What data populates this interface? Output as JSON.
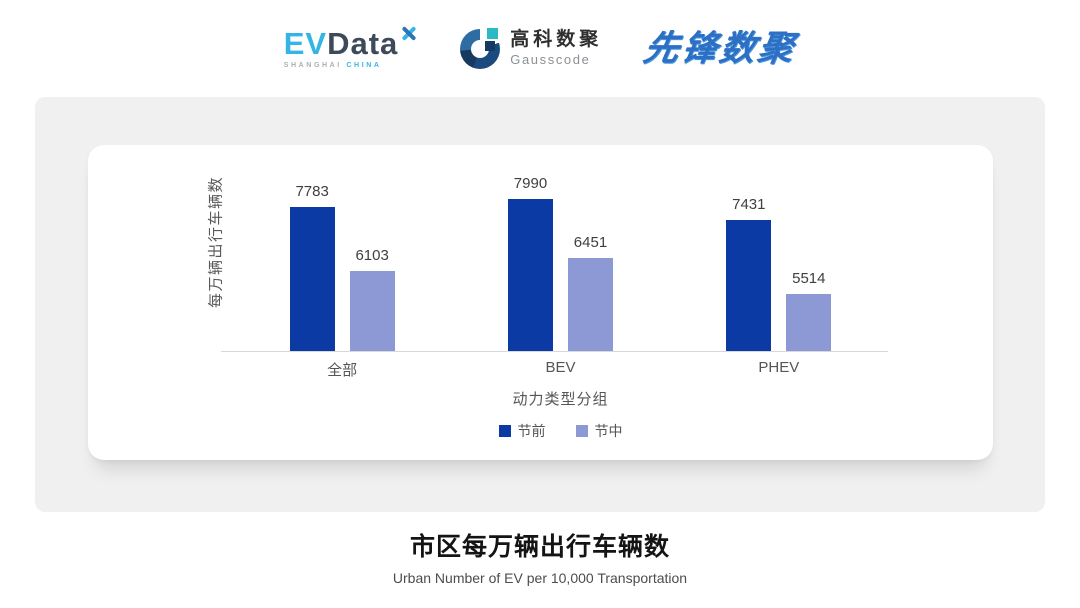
{
  "header": {
    "evdata": {
      "ev": "EV",
      "data": "Data",
      "sub_left": "SHANGHAI",
      "sub_right": "CHINA",
      "brand_blue": "#35B5E5",
      "brand_dark": "#3E4A59"
    },
    "gausscode": {
      "cn": "高科数聚",
      "en": "Gausscode",
      "navy": "#17395F",
      "teal": "#2BB9C6"
    },
    "xianfeng": {
      "text": "先锋数聚",
      "blue": "#2C6FC4"
    }
  },
  "chart_data": {
    "type": "bar",
    "title": "市区每万辆出行车辆数",
    "subtitle": "Urban Number of EV per 10,000 Transportation",
    "categories": [
      "全部",
      "BEV",
      "PHEV"
    ],
    "series": [
      {
        "name": "节前",
        "color": "#0B3AA5",
        "values": [
          7783,
          7990,
          7431
        ]
      },
      {
        "name": "节中",
        "color": "#8C99D4",
        "values": [
          6103,
          6451,
          5514
        ]
      }
    ],
    "xlabel": "动力类型分组",
    "ylabel": "每万辆出行车辆数",
    "ylim": [
      4000,
      8800
    ],
    "grid": false,
    "legend_position": "bottom",
    "value_labels": true,
    "axis_line_color": "#D8D8D8"
  }
}
